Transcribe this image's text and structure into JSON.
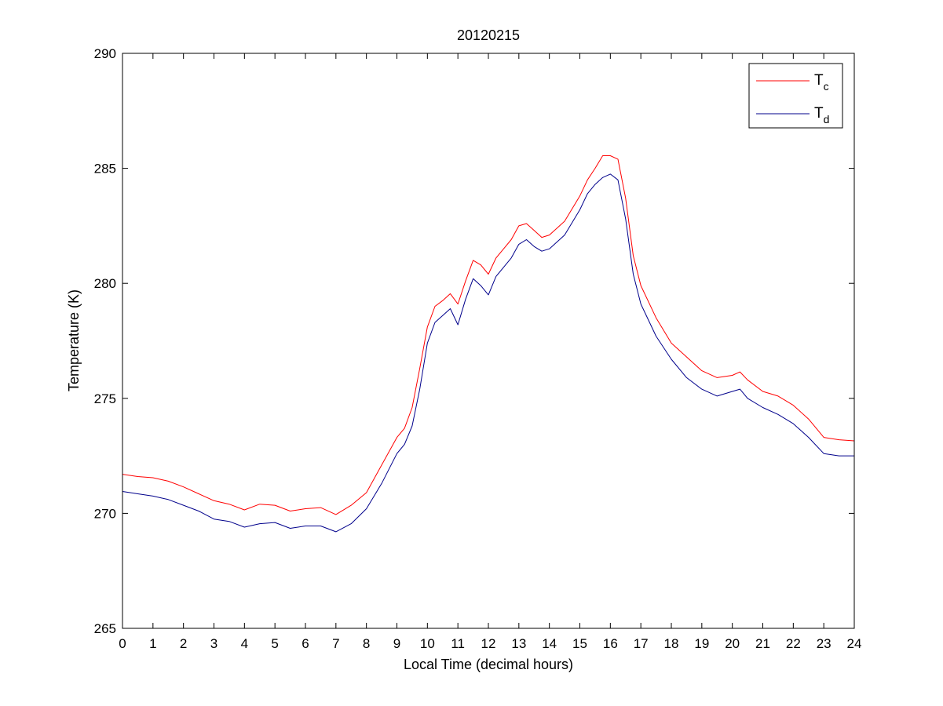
{
  "chart_data": {
    "type": "line",
    "title": "20120215",
    "xlabel": "Local Time (decimal hours)",
    "ylabel": "Temperature (K)",
    "xlim": [
      0,
      24
    ],
    "ylim": [
      265,
      290
    ],
    "xticks": [
      0,
      1,
      2,
      3,
      4,
      5,
      6,
      7,
      8,
      9,
      10,
      11,
      12,
      13,
      14,
      15,
      16,
      17,
      18,
      19,
      20,
      21,
      22,
      23,
      24
    ],
    "yticks": [
      265,
      270,
      275,
      280,
      285,
      290
    ],
    "grid": false,
    "legend_position": "top-right",
    "series": [
      {
        "name": "T",
        "subscript": "c",
        "color": "#ff0000",
        "x": [
          0,
          0.5,
          1,
          1.5,
          2,
          2.5,
          3,
          3.5,
          4,
          4.5,
          5,
          5.5,
          6,
          6.5,
          7,
          7.5,
          8,
          8.5,
          9,
          9.25,
          9.5,
          9.75,
          10,
          10.25,
          10.5,
          10.75,
          11,
          11.25,
          11.5,
          11.75,
          12,
          12.25,
          12.5,
          12.75,
          13,
          13.25,
          13.5,
          13.75,
          14,
          14.5,
          15,
          15.25,
          15.5,
          15.75,
          16,
          16.25,
          16.5,
          16.75,
          17,
          17.5,
          18,
          18.5,
          19,
          19.5,
          20,
          20.25,
          20.5,
          21,
          21.5,
          22,
          22.5,
          23,
          23.5,
          24
        ],
        "values": [
          271.7,
          271.6,
          271.55,
          271.4,
          271.15,
          270.85,
          270.55,
          270.4,
          270.15,
          270.4,
          270.35,
          270.1,
          270.2,
          270.25,
          269.95,
          270.35,
          270.9,
          272.1,
          273.3,
          273.7,
          274.6,
          276.3,
          278.1,
          279,
          279.25,
          279.55,
          279.1,
          280.1,
          281,
          280.8,
          280.4,
          281.1,
          281.5,
          281.9,
          282.5,
          282.6,
          282.3,
          282,
          282.1,
          282.7,
          283.8,
          284.5,
          285,
          285.55,
          285.55,
          285.4,
          283.7,
          281.2,
          279.9,
          278.5,
          277.4,
          276.8,
          276.2,
          275.9,
          276,
          276.15,
          275.8,
          275.3,
          275.1,
          274.7,
          274.1,
          273.3,
          273.2,
          273.15
        ]
      },
      {
        "name": "T",
        "subscript": "d",
        "color": "#00008b",
        "x": [
          0,
          0.5,
          1,
          1.5,
          2,
          2.5,
          3,
          3.5,
          4,
          4.5,
          5,
          5.5,
          6,
          6.5,
          7,
          7.5,
          8,
          8.5,
          9,
          9.25,
          9.5,
          9.75,
          10,
          10.25,
          10.5,
          10.75,
          11,
          11.25,
          11.5,
          11.75,
          12,
          12.25,
          12.5,
          12.75,
          13,
          13.25,
          13.5,
          13.75,
          14,
          14.5,
          15,
          15.25,
          15.5,
          15.75,
          16,
          16.25,
          16.5,
          16.75,
          17,
          17.5,
          18,
          18.5,
          19,
          19.5,
          20,
          20.25,
          20.5,
          21,
          21.5,
          22,
          22.5,
          23,
          23.5,
          24
        ],
        "values": [
          270.95,
          270.85,
          270.75,
          270.6,
          270.35,
          270.1,
          269.75,
          269.65,
          269.4,
          269.55,
          269.6,
          269.35,
          269.45,
          269.45,
          269.2,
          269.55,
          270.2,
          271.3,
          272.6,
          273,
          273.8,
          275.4,
          277.4,
          278.3,
          278.6,
          278.9,
          278.2,
          279.3,
          280.2,
          279.9,
          279.5,
          280.3,
          280.7,
          281.1,
          281.7,
          281.9,
          281.6,
          281.4,
          281.5,
          282.1,
          283.2,
          283.9,
          284.3,
          284.6,
          284.75,
          284.5,
          282.8,
          280.4,
          279.1,
          277.7,
          276.7,
          275.9,
          275.4,
          275.1,
          275.3,
          275.4,
          275,
          274.6,
          274.3,
          273.9,
          273.3,
          272.6,
          272.5,
          272.5
        ]
      }
    ]
  }
}
